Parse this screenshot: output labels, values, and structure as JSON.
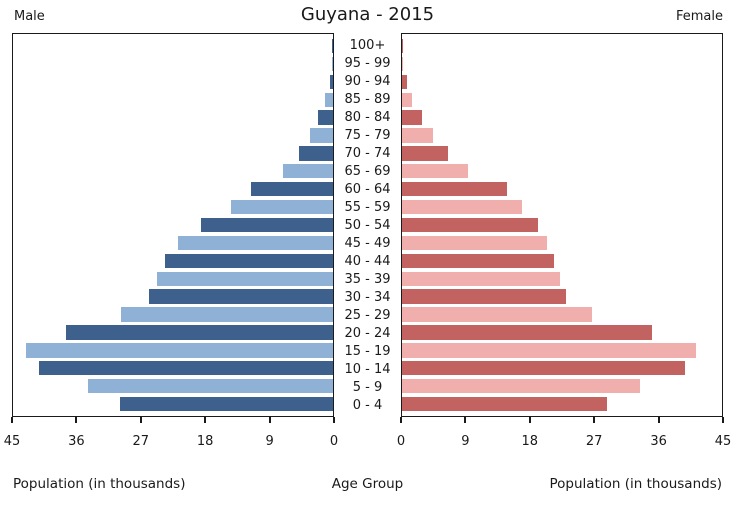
{
  "title": "Guyana - 2015",
  "male_label": "Male",
  "female_label": "Female",
  "xlabel_left": "Population (in thousands)",
  "xlabel_center": "Age Group",
  "xlabel_right": "Population (in thousands)",
  "colors": {
    "male_dark": "#3E608C",
    "male_light": "#8FB1D6",
    "female_dark": "#C26361",
    "female_light": "#F0AEAD",
    "axis": "#1a1a1a"
  },
  "chart_data": {
    "type": "bar",
    "subtype": "population-pyramid",
    "title": "Guyana - 2015",
    "xlabel": "Population (in thousands)",
    "ylabel": "Age Group",
    "xlim": [
      0,
      45
    ],
    "xticks": [
      0,
      9,
      18,
      27,
      36,
      45
    ],
    "age_groups": [
      "100+",
      "95 - 99",
      "90 - 94",
      "85 - 89",
      "80 - 84",
      "75 - 79",
      "70 - 74",
      "65 - 69",
      "60 - 64",
      "55 - 59",
      "50 - 54",
      "45 - 49",
      "40 - 44",
      "35 - 39",
      "30 - 34",
      "25 - 29",
      "20 - 24",
      "15 - 19",
      "10 - 14",
      "5 - 9",
      "0 - 4"
    ],
    "series": [
      {
        "name": "Male",
        "values": [
          0.2,
          0.15,
          0.4,
          1.1,
          2.1,
          3.3,
          4.8,
          7.1,
          11.5,
          14.3,
          18.5,
          21.8,
          23.6,
          24.7,
          25.9,
          29.8,
          37.6,
          43.2,
          41.4,
          34.5,
          29.9
        ]
      },
      {
        "name": "Female",
        "values": [
          0.2,
          0.1,
          0.7,
          1.4,
          2.8,
          4.4,
          6.5,
          9.3,
          14.8,
          16.9,
          19.1,
          20.4,
          21.4,
          22.2,
          23.1,
          26.7,
          35.2,
          41.4,
          39.8,
          33.5,
          28.8
        ]
      }
    ]
  }
}
